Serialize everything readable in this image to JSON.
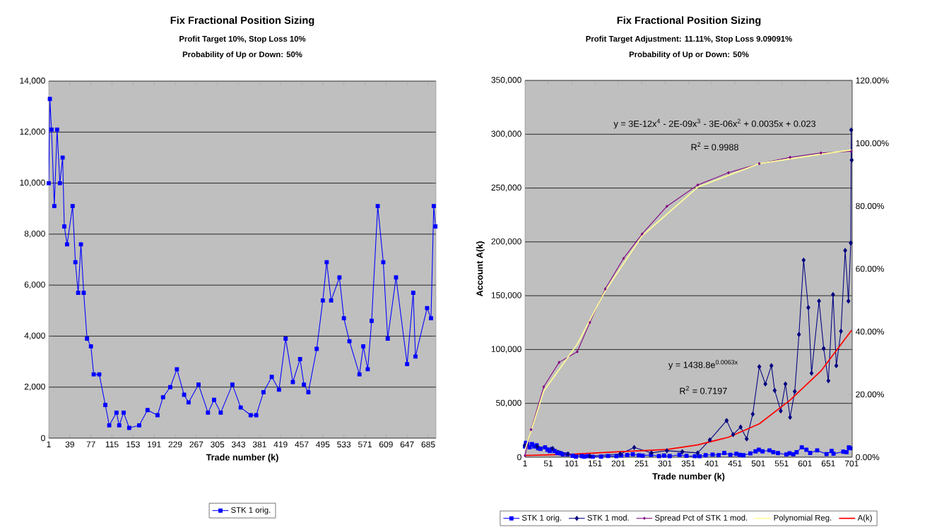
{
  "chart_data": [
    {
      "type": "line",
      "title": "Fix Fractional Position Sizing",
      "subtitle": "Profit Target 10%, Stop Loss 10%",
      "annotations": [
        "Probability of Up or Down: 50%"
      ],
      "xlabel": "Trade number (k)",
      "xlim": [
        1,
        699
      ],
      "xticks": [
        1,
        39,
        77,
        115,
        153,
        191,
        229,
        267,
        305,
        343,
        381,
        419,
        457,
        495,
        533,
        571,
        609,
        647,
        685
      ],
      "ylim": [
        0,
        14000
      ],
      "yticks": [
        0,
        {
          "value": 2000,
          "label": "2,000"
        },
        {
          "value": 4000,
          "label": "4,000"
        },
        {
          "value": 6000,
          "label": "6,000"
        },
        {
          "value": 8000,
          "label": "8,000"
        },
        {
          "value": 10000,
          "label": "10,000"
        },
        {
          "value": 12000,
          "label": "12,000"
        },
        {
          "value": 14000,
          "label": "14,000"
        }
      ],
      "grid": "y",
      "legend": "bottom",
      "series": [
        {
          "name": "STK 1 orig.",
          "color": "#0000ff",
          "marker": "square",
          "x": [
            1,
            3,
            6,
            11,
            16,
            21,
            26,
            29,
            34,
            44,
            49,
            54,
            59,
            64,
            70,
            77,
            82,
            92,
            103,
            110,
            123,
            128,
            136,
            146,
            164,
            179,
            197,
            207,
            220,
            232,
            245,
            253,
            271,
            288,
            299,
            311,
            332,
            347,
            365,
            375,
            388,
            403,
            416,
            428,
            441,
            454,
            461,
            469,
            484,
            495,
            502,
            510,
            525,
            533,
            543,
            561,
            568,
            576,
            583,
            594,
            604,
            612,
            627,
            647,
            658,
            662,
            683,
            690,
            695,
            698
          ],
          "values": [
            10000,
            13300,
            12100,
            9100,
            12100,
            10000,
            11000,
            8300,
            7600,
            9100,
            6900,
            5700,
            7600,
            5700,
            3900,
            3600,
            2500,
            2500,
            1300,
            500,
            1000,
            500,
            1000,
            400,
            500,
            1100,
            900,
            1600,
            2000,
            2700,
            1700,
            1400,
            2100,
            1000,
            1500,
            1000,
            2100,
            1200,
            900,
            900,
            1800,
            2400,
            1900,
            3900,
            2200,
            3100,
            2100,
            1800,
            3500,
            5400,
            6900,
            5400,
            6300,
            4700,
            3800,
            2500,
            3600,
            2700,
            4600,
            9100,
            6900,
            3900,
            6300,
            2900,
            5700,
            3200,
            5100,
            4700,
            9100,
            8300
          ]
        }
      ]
    },
    {
      "type": "line",
      "title": "Fix Fractional Position Sizing",
      "subtitle": "Profit Target Adjustment: 11.11%, Stop Loss 9.09091%",
      "annotations": [
        "Probability of Up or Down: 50%",
        "y = 3E-12x$^{4}$ - 2E-09x$^{3}$ - 3E-06x$^{2}$ + 0.0035x + 0.023",
        "R$^{2}$ = 0.9988",
        "y = 1438.8e$^{0.0063x}$",
        "R$^{2}$ = 0.7197"
      ],
      "xlabel": "Trade number (k)",
      "ylabel": "Account A(k)",
      "xlim": [
        1,
        702
      ],
      "xticks": [
        1,
        51,
        101,
        151,
        201,
        251,
        301,
        351,
        401,
        451,
        501,
        551,
        601,
        651,
        701
      ],
      "ylim": [
        0,
        350000
      ],
      "yticks": [
        0,
        {
          "value": 50000,
          "label": "50,000"
        },
        {
          "value": 100000,
          "label": "100,000"
        },
        {
          "value": 150000,
          "label": "150,000"
        },
        {
          "value": 200000,
          "label": "200,000"
        },
        {
          "value": 250000,
          "label": "250,000"
        },
        {
          "value": 300000,
          "label": "300,000"
        },
        {
          "value": 350000,
          "label": "350,000"
        }
      ],
      "y2lim": [
        0,
        120
      ],
      "y2ticks": [
        {
          "value": 0,
          "label": "0.00%"
        },
        {
          "value": 20,
          "label": "20.00%"
        },
        {
          "value": 40,
          "label": "40.00%"
        },
        {
          "value": 60,
          "label": "60.00%"
        },
        {
          "value": 80,
          "label": "80.00%"
        },
        {
          "value": 100,
          "label": "100.00%"
        },
        {
          "value": 120,
          "label": "120.00%"
        }
      ],
      "grid": "y",
      "legend": "bottom",
      "series": [
        {
          "name": "STK 1 orig.",
          "color": "#0000ff",
          "marker": "square",
          "x": [
            1,
            3,
            6,
            11,
            16,
            21,
            26,
            29,
            34,
            44,
            49,
            54,
            59,
            64,
            70,
            77,
            82,
            92,
            103,
            110,
            123,
            128,
            136,
            146,
            164,
            179,
            197,
            207,
            220,
            232,
            245,
            253,
            271,
            288,
            299,
            311,
            332,
            347,
            365,
            375,
            388,
            403,
            416,
            428,
            441,
            454,
            461,
            469,
            484,
            495,
            502,
            510,
            525,
            533,
            543,
            561,
            568,
            576,
            583,
            594,
            604,
            612,
            627,
            647,
            658,
            662,
            683,
            690,
            695,
            698
          ],
          "values": [
            10000,
            13300,
            12100,
            9100,
            12100,
            10000,
            11000,
            8300,
            7600,
            9100,
            6900,
            5700,
            7600,
            5700,
            3900,
            3600,
            2500,
            2500,
            1300,
            500,
            1000,
            500,
            1000,
            400,
            500,
            1100,
            900,
            1600,
            2000,
            2700,
            1700,
            1400,
            2100,
            1000,
            1500,
            1000,
            2100,
            1200,
            900,
            900,
            1800,
            2400,
            1900,
            3900,
            2200,
            3100,
            2100,
            1800,
            3500,
            5400,
            6900,
            5400,
            6300,
            4700,
            3800,
            2500,
            3600,
            2700,
            4600,
            9100,
            6900,
            3900,
            6300,
            2900,
            5700,
            3200,
            5100,
            4700,
            9100,
            8300
          ]
        },
        {
          "name": "STK 1 mod.",
          "color": "#000080",
          "marker": "diamond",
          "x": [
            1,
            27,
            60,
            93,
            140,
            205,
            235,
            272,
            305,
            338,
            371,
            397,
            433,
            447,
            463,
            476,
            489,
            503,
            516,
            529,
            536,
            549,
            559,
            569,
            579,
            588,
            598,
            608,
            615,
            631,
            641,
            651,
            661,
            668,
            678,
            687,
            694,
            699,
            700,
            701
          ],
          "values": [
            11000,
            10000,
            8000,
            3000,
            1000,
            3000,
            9000,
            4000,
            6000,
            5000,
            4000,
            16000,
            34000,
            21000,
            28000,
            17000,
            40000,
            84000,
            68000,
            85000,
            62000,
            43000,
            68000,
            37000,
            61000,
            114000,
            183000,
            139000,
            78000,
            145000,
            101000,
            71000,
            151000,
            85000,
            117000,
            192000,
            145000,
            199000,
            304000,
            276000
          ]
        },
        {
          "name": "Spread Pct of STK 1 mod.",
          "color": "#800080",
          "marker": "diamond",
          "axis": "y2",
          "x": [
            1,
            14,
            41,
            74,
            113,
            140,
            173,
            212,
            252,
            305,
            371,
            437,
            503,
            569,
            635,
            700
          ],
          "values": [
            0.5,
            8.8,
            22.4,
            30.2,
            33.6,
            42.9,
            53.6,
            63.3,
            71.1,
            79.9,
            86.7,
            90.6,
            93.5,
            95.5,
            96.9,
            97.4
          ]
        },
        {
          "name": "Polynomial Reg.",
          "color": "#ffff99",
          "marker": "none",
          "axis": "y2",
          "x": [
            1,
            41,
            113,
            173,
            252,
            371,
            503,
            635,
            701
          ],
          "values": [
            2.3,
            21,
            36,
            53,
            70.5,
            86,
            93.5,
            96.5,
            97.9
          ]
        },
        {
          "name": "A(k)",
          "color": "#ff0000",
          "marker": "none",
          "x": [
            1,
            100,
            200,
            305,
            371,
            437,
            503,
            569,
            635,
            701
          ],
          "values": [
            1500,
            2700,
            5000,
            7100,
            11400,
            18500,
            31000,
            53000,
            80000,
            118000
          ]
        }
      ]
    }
  ]
}
